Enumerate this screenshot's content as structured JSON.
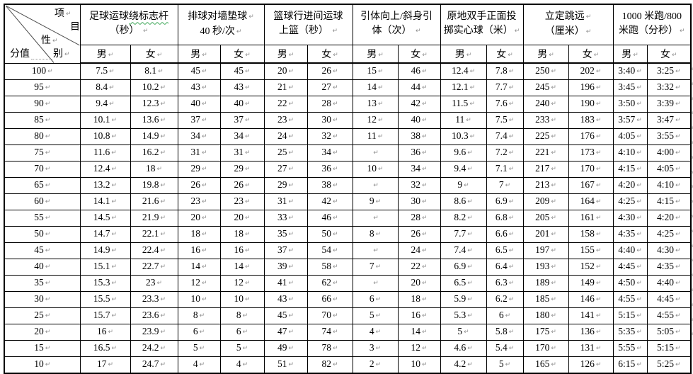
{
  "marks": {
    "pilcrow": "↵"
  },
  "colors": {
    "border": "#000000",
    "squiggle_green": "#3aa655",
    "mark_gray": "#8f8f8f"
  },
  "header": {
    "corner": {
      "project_top": "项",
      "project_bottom": "目",
      "gender_top": "性",
      "score_label": "分值",
      "gender_bottom": "别"
    },
    "male": "男",
    "female": "女",
    "events": [
      {
        "name": "football-dribble",
        "line1_plain": "足球运球",
        "line1_squiggle": "绕标志杆",
        "line2": "（秒）"
      },
      {
        "name": "volleyball-wall",
        "line1": "排球对墙垫球",
        "line2": "40 秒/次"
      },
      {
        "name": "basketball-layup",
        "line1": "篮球行进间运球",
        "line2": "上篮（秒）"
      },
      {
        "name": "pull-ups",
        "line1": "引体向上/斜身引",
        "line2": "体（次）"
      },
      {
        "name": "medicine-ball-throw",
        "line1": "原地双手正面投",
        "line2": "掷实心球（米）"
      },
      {
        "name": "standing-long-jump",
        "line1": "立定跳远",
        "line2": "（厘米）"
      },
      {
        "name": "distance-run",
        "line1": "1000 米跑/800",
        "line2": "米跑（分秒）"
      }
    ]
  },
  "rows": [
    {
      "score": "100",
      "cells": [
        "7.5",
        "8.1",
        "45",
        "45",
        "20",
        "26",
        "15",
        "46",
        "12.4",
        "7.8",
        "250",
        "202",
        "3:40",
        "3:25"
      ]
    },
    {
      "score": "95",
      "cells": [
        "8.4",
        "10.2",
        "43",
        "43",
        "21",
        "27",
        "14",
        "44",
        "12.1",
        "7.7",
        "245",
        "196",
        "3:45",
        "3:32"
      ]
    },
    {
      "score": "90",
      "cells": [
        "9.4",
        "12.3",
        "40",
        "40",
        "22",
        "28",
        "13",
        "42",
        "11.5",
        "7.6",
        "240",
        "190",
        "3:50",
        "3:39"
      ]
    },
    {
      "score": "85",
      "cells": [
        "10.1",
        "13.6",
        "37",
        "37",
        "23",
        "30",
        "12",
        "40",
        "11",
        "7.5",
        "233",
        "183",
        "3:57",
        "3:47"
      ]
    },
    {
      "score": "80",
      "cells": [
        "10.8",
        "14.9",
        "34",
        "34",
        "24",
        "32",
        "11",
        "38",
        "10.3",
        "7.4",
        "225",
        "176",
        "4:05",
        "3:55"
      ]
    },
    {
      "score": "75",
      "cells": [
        "11.6",
        "16.2",
        "31",
        "31",
        "25",
        "34",
        "",
        "36",
        "9.6",
        "7.2",
        "221",
        "173",
        "4:10",
        "4:00"
      ]
    },
    {
      "score": "70",
      "cells": [
        "12.4",
        "18",
        "29",
        "29",
        "27",
        "36",
        "10",
        "34",
        "9.4",
        "7.1",
        "217",
        "170",
        "4:15",
        "4:05"
      ]
    },
    {
      "score": "65",
      "cells": [
        "13.2",
        "19.8",
        "26",
        "26",
        "29",
        "38",
        "",
        "32",
        "9",
        "7",
        "213",
        "167",
        "4:20",
        "4:10"
      ]
    },
    {
      "score": "60",
      "cells": [
        "14.1",
        "21.6",
        "23",
        "23",
        "31",
        "42",
        "9",
        "30",
        "8.6",
        "6.9",
        "209",
        "164",
        "4:25",
        "4:15"
      ]
    },
    {
      "score": "55",
      "cells": [
        "14.5",
        "21.9",
        "20",
        "20",
        "33",
        "46",
        "",
        "28",
        "8.2",
        "6.8",
        "205",
        "161",
        "4:30",
        "4:20"
      ]
    },
    {
      "score": "50",
      "cells": [
        "14.7",
        "22.1",
        "18",
        "18",
        "35",
        "50",
        "8",
        "26",
        "7.7",
        "6.6",
        "201",
        "158",
        "4:35",
        "4:25"
      ]
    },
    {
      "score": "45",
      "cells": [
        "14.9",
        "22.4",
        "16",
        "16",
        "37",
        "54",
        "",
        "24",
        "7.4",
        "6.5",
        "197",
        "155",
        "4:40",
        "4:30"
      ]
    },
    {
      "score": "40",
      "cells": [
        "15.1",
        "22.7",
        "14",
        "14",
        "39",
        "58",
        "7",
        "22",
        "6.9",
        "6.4",
        "193",
        "152",
        "4:45",
        "4:35"
      ]
    },
    {
      "score": "35",
      "cells": [
        "15.3",
        "23",
        "12",
        "12",
        "41",
        "62",
        "",
        "20",
        "6.5",
        "6.3",
        "189",
        "149",
        "4:50",
        "4:40"
      ]
    },
    {
      "score": "30",
      "cells": [
        "15.5",
        "23.3",
        "10",
        "10",
        "43",
        "66",
        "6",
        "18",
        "5.9",
        "6.2",
        "185",
        "146",
        "4:55",
        "4:45"
      ]
    },
    {
      "score": "25",
      "cells": [
        "15.7",
        "23.6",
        "8",
        "8",
        "45",
        "70",
        "5",
        "16",
        "5.3",
        "6",
        "180",
        "141",
        "5:15",
        "4:55"
      ]
    },
    {
      "score": "20",
      "cells": [
        "16",
        "23.9",
        "6",
        "6",
        "47",
        "74",
        "4",
        "14",
        "5",
        "5.8",
        "175",
        "136",
        "5:35",
        "5:05"
      ]
    },
    {
      "score": "15",
      "cells": [
        "16.5",
        "24.2",
        "5",
        "5",
        "49",
        "78",
        "3",
        "12",
        "4.6",
        "5.4",
        "170",
        "131",
        "5:55",
        "5:15"
      ]
    },
    {
      "score": "10",
      "cells": [
        "17",
        "24.7",
        "4",
        "4",
        "51",
        "82",
        "2",
        "10",
        "4.2",
        "5",
        "165",
        "126",
        "6:15",
        "5:25"
      ]
    }
  ]
}
